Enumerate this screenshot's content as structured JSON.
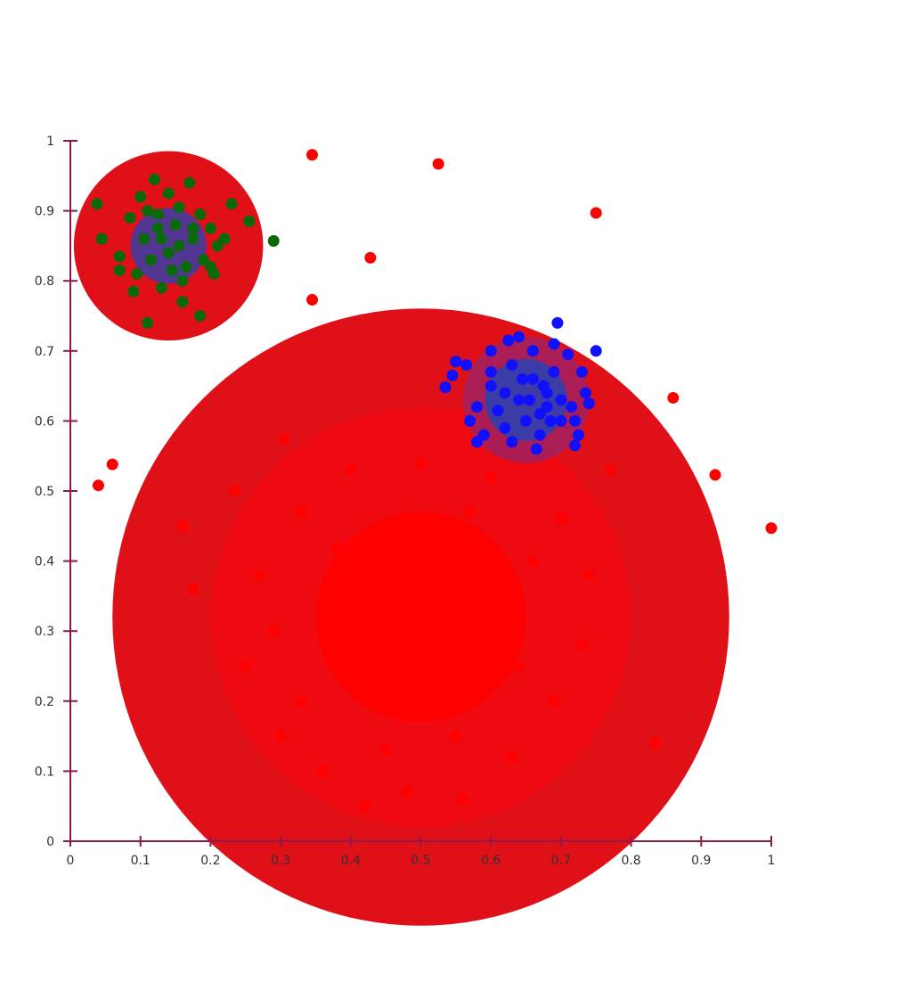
{
  "chart_data": {
    "type": "scatter",
    "title": "",
    "xlabel": "",
    "ylabel": "",
    "xlim": [
      0,
      1
    ],
    "ylim": [
      0,
      1
    ],
    "grid": false,
    "legend": "none",
    "x_ticks": [
      "0",
      "0.1",
      "0.2",
      "0.3",
      "0.4",
      "0.5",
      "0.6",
      "0.7",
      "0.8",
      "0.9",
      "1"
    ],
    "y_ticks": [
      "0",
      "0.1",
      "0.2",
      "0.3",
      "0.4",
      "0.5",
      "0.6",
      "0.7",
      "0.8",
      "0.9",
      "1"
    ],
    "colors": {
      "axis": "#8b1a4a",
      "red_halo": "#e01018",
      "red_ring": "#ee0a10",
      "red_core": "#ff0000",
      "red_points": "#ff0000",
      "green_points": "#0a6a0a",
      "blue_points": "#1010ff",
      "blue_cluster_core": "#3040b0"
    },
    "clusters": [
      {
        "color": "red",
        "center": [
          0.5,
          0.32
        ],
        "radius": 0.44
      },
      {
        "color": "green",
        "center": [
          0.14,
          0.85
        ],
        "radius": 0.135
      },
      {
        "color": "blue",
        "center": [
          0.65,
          0.63
        ],
        "radius": 0.09
      }
    ],
    "series": [
      {
        "color": "#ff0000",
        "values": [
          [
            0.345,
            0.98
          ],
          [
            0.525,
            0.967
          ],
          [
            0.75,
            0.897
          ],
          [
            0.428,
            0.833
          ],
          [
            0.345,
            0.773
          ],
          [
            0.86,
            0.633
          ],
          [
            0.92,
            0.523
          ],
          [
            1.0,
            0.447
          ],
          [
            0.04,
            0.508
          ],
          [
            0.06,
            0.538
          ],
          [
            0.16,
            0.45
          ],
          [
            0.175,
            0.36
          ],
          [
            0.235,
            0.5
          ],
          [
            0.305,
            0.575
          ],
          [
            0.835,
            0.14
          ],
          [
            0.77,
            0.53
          ],
          [
            0.27,
            0.38
          ],
          [
            0.25,
            0.25
          ],
          [
            0.3,
            0.15
          ],
          [
            0.36,
            0.1
          ],
          [
            0.42,
            0.05
          ],
          [
            0.48,
            0.07
          ],
          [
            0.56,
            0.06
          ],
          [
            0.63,
            0.12
          ],
          [
            0.69,
            0.2
          ],
          [
            0.73,
            0.28
          ],
          [
            0.74,
            0.38
          ],
          [
            0.7,
            0.46
          ],
          [
            0.6,
            0.52
          ],
          [
            0.5,
            0.54
          ],
          [
            0.4,
            0.53
          ],
          [
            0.33,
            0.47
          ],
          [
            0.29,
            0.3
          ],
          [
            0.33,
            0.2
          ],
          [
            0.45,
            0.13
          ],
          [
            0.55,
            0.15
          ],
          [
            0.64,
            0.25
          ],
          [
            0.66,
            0.4
          ],
          [
            0.57,
            0.47
          ],
          [
            0.38,
            0.42
          ]
        ]
      },
      {
        "color": "#0a6a0a",
        "values": [
          [
            0.038,
            0.91
          ],
          [
            0.045,
            0.86
          ],
          [
            0.07,
            0.835
          ],
          [
            0.07,
            0.815
          ],
          [
            0.09,
            0.785
          ],
          [
            0.11,
            0.74
          ],
          [
            0.12,
            0.945
          ],
          [
            0.1,
            0.92
          ],
          [
            0.14,
            0.925
          ],
          [
            0.17,
            0.94
          ],
          [
            0.2,
            0.875
          ],
          [
            0.23,
            0.91
          ],
          [
            0.255,
            0.885
          ],
          [
            0.29,
            0.857
          ],
          [
            0.205,
            0.81
          ],
          [
            0.185,
            0.75
          ],
          [
            0.16,
            0.77
          ],
          [
            0.13,
            0.79
          ],
          [
            0.085,
            0.89
          ],
          [
            0.105,
            0.86
          ],
          [
            0.125,
            0.875
          ],
          [
            0.15,
            0.88
          ],
          [
            0.175,
            0.86
          ],
          [
            0.19,
            0.83
          ],
          [
            0.165,
            0.82
          ],
          [
            0.14,
            0.84
          ],
          [
            0.115,
            0.83
          ],
          [
            0.095,
            0.81
          ],
          [
            0.125,
            0.895
          ],
          [
            0.155,
            0.905
          ],
          [
            0.185,
            0.895
          ],
          [
            0.21,
            0.85
          ],
          [
            0.13,
            0.86
          ],
          [
            0.155,
            0.85
          ],
          [
            0.175,
            0.875
          ],
          [
            0.145,
            0.815
          ],
          [
            0.2,
            0.82
          ],
          [
            0.11,
            0.9
          ],
          [
            0.16,
            0.8
          ],
          [
            0.22,
            0.86
          ]
        ]
      },
      {
        "color": "#1010ff",
        "values": [
          [
            0.535,
            0.648
          ],
          [
            0.545,
            0.665
          ],
          [
            0.55,
            0.685
          ],
          [
            0.565,
            0.68
          ],
          [
            0.57,
            0.6
          ],
          [
            0.58,
            0.57
          ],
          [
            0.59,
            0.58
          ],
          [
            0.6,
            0.7
          ],
          [
            0.61,
            0.615
          ],
          [
            0.62,
            0.64
          ],
          [
            0.625,
            0.715
          ],
          [
            0.63,
            0.57
          ],
          [
            0.64,
            0.72
          ],
          [
            0.645,
            0.66
          ],
          [
            0.65,
            0.6
          ],
          [
            0.655,
            0.63
          ],
          [
            0.66,
            0.7
          ],
          [
            0.665,
            0.56
          ],
          [
            0.67,
            0.58
          ],
          [
            0.675,
            0.65
          ],
          [
            0.68,
            0.62
          ],
          [
            0.685,
            0.6
          ],
          [
            0.69,
            0.71
          ],
          [
            0.695,
            0.74
          ],
          [
            0.7,
            0.6
          ],
          [
            0.71,
            0.695
          ],
          [
            0.715,
            0.62
          ],
          [
            0.72,
            0.565
          ],
          [
            0.725,
            0.58
          ],
          [
            0.73,
            0.67
          ],
          [
            0.735,
            0.64
          ],
          [
            0.74,
            0.625
          ],
          [
            0.75,
            0.7
          ],
          [
            0.6,
            0.65
          ],
          [
            0.62,
            0.59
          ],
          [
            0.64,
            0.63
          ],
          [
            0.66,
            0.66
          ],
          [
            0.68,
            0.64
          ],
          [
            0.7,
            0.63
          ],
          [
            0.72,
            0.6
          ],
          [
            0.58,
            0.62
          ],
          [
            0.6,
            0.67
          ],
          [
            0.63,
            0.68
          ],
          [
            0.67,
            0.61
          ],
          [
            0.69,
            0.67
          ]
        ]
      }
    ]
  }
}
